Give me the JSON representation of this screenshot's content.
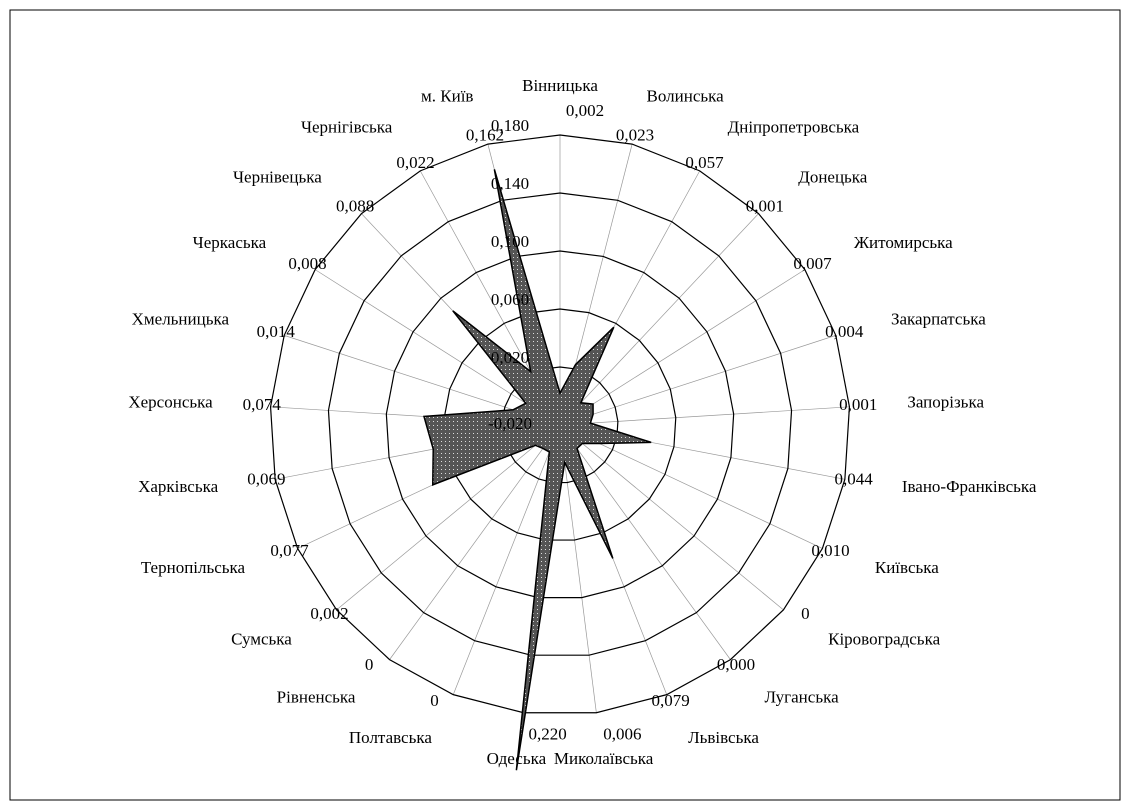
{
  "chart_data": {
    "type": "radar",
    "categories": [
      "Вінницька",
      "Волинська",
      "Дніпропетровська",
      "Донецька",
      "Житомирська",
      "Закарпатська",
      "Запорізька",
      "Івано-Франківська",
      "Київська",
      "Кіровоградська",
      "Луганська",
      "Львівська",
      "Миколаївська",
      "Одеська",
      "Полтавська",
      "Рівненська",
      "Сумська",
      "Тернопільська",
      "Харківська",
      "Херсонська",
      "Хмельницька",
      "Черкаська",
      "Чернівецька",
      "Чернігівська",
      "м. Київ"
    ],
    "values": [
      0.002,
      0.023,
      0.057,
      0.001,
      0.007,
      0.004,
      0.001,
      0.044,
      0.01,
      0,
      0.0,
      0.079,
      0.006,
      0.22,
      0,
      0,
      0.002,
      0.077,
      0.069,
      0.074,
      0.014,
      0.008,
      0.088,
      0.022,
      0.162
    ],
    "value_labels": [
      "0,002",
      "0,023",
      "0,057",
      "0,001",
      "0,007",
      "0,004",
      "0,001",
      "0,044",
      "0,010",
      "0",
      "0,000",
      "0,079",
      "0,006",
      "0,220",
      "0",
      "0",
      "0,002",
      "0,077",
      "0,069",
      "0,074",
      "0,014",
      "0,008",
      "0,088",
      "0,022",
      "0,162"
    ],
    "color": "#555555",
    "ylim": [
      -0.02,
      0.18
    ],
    "yticks": [
      {
        "value": -0.02,
        "label": "-0,020"
      },
      {
        "value": 0.02,
        "label": "0,020"
      },
      {
        "value": 0.06,
        "label": "0,060"
      },
      {
        "value": 0.1,
        "label": "0,100"
      },
      {
        "value": 0.14,
        "label": "0,140"
      },
      {
        "value": 0.18,
        "label": "0,180"
      }
    ],
    "grid": true
  }
}
